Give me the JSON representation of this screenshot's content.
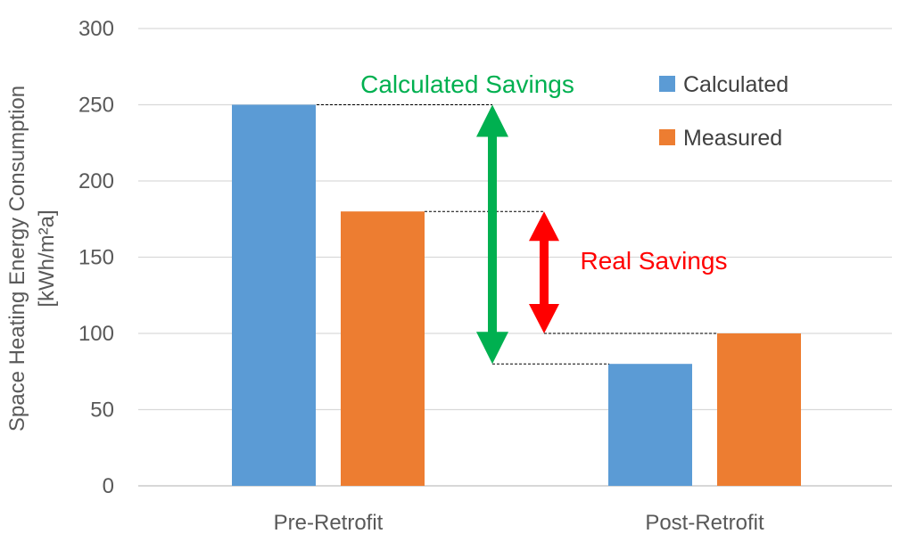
{
  "chart_data": {
    "type": "bar",
    "categories": [
      "Pre-Retrofit",
      "Post-Retrofit"
    ],
    "series": [
      {
        "name": "Calculated",
        "values": [
          250,
          80
        ],
        "color": "#5B9BD5"
      },
      {
        "name": "Measured",
        "values": [
          180,
          100
        ],
        "color": "#ED7D31"
      }
    ],
    "ylabel_line1": "Space Heating Energy Consumption",
    "ylabel_line2": "[kWh/m²a]",
    "ylim": [
      0,
      300
    ],
    "yticks": [
      0,
      50,
      100,
      150,
      200,
      250,
      300
    ],
    "grid": true,
    "legend_position": "top-right",
    "annotations": {
      "calculated_savings": {
        "label": "Calculated Savings",
        "from": 250,
        "to": 80,
        "color": "#00B050"
      },
      "real_savings": {
        "label": "Real Savings",
        "from": 180,
        "to": 100,
        "color": "#FF0000"
      }
    }
  }
}
